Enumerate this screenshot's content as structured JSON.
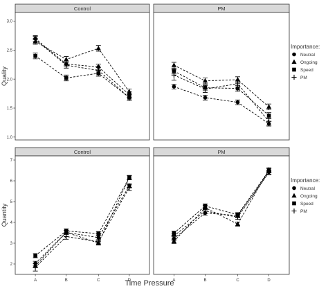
{
  "chart_data": {
    "type": "line",
    "x_title": "Time Pressure",
    "categories": [
      "A",
      "B",
      "C",
      "D"
    ],
    "legend": {
      "title": "Importance:",
      "entries": [
        {
          "name": "Neutral",
          "shape": "circle"
        },
        {
          "name": "Ongoing",
          "shape": "triangle"
        },
        {
          "name": "Speed",
          "shape": "square"
        },
        {
          "name": "PM",
          "shape": "plus"
        }
      ],
      "placement": "right"
    },
    "rows": [
      {
        "ylabel": "Quality",
        "ylim": [
          0.95,
          3.15
        ],
        "yticks": [
          "1.0",
          "1.5",
          "2.0",
          "2.5",
          "3.0"
        ],
        "panels": [
          {
            "title": "Control",
            "series": [
              {
                "name": "Neutral",
                "values": [
                  2.7,
                  2.26,
                  2.21,
                  1.73
                ],
                "errors": [
                  0.05,
                  0.05,
                  0.05,
                  0.05
                ]
              },
              {
                "name": "Ongoing",
                "values": [
                  2.65,
                  2.34,
                  2.53,
                  1.78
                ],
                "errors": [
                  0.05,
                  0.05,
                  0.05,
                  0.05
                ]
              },
              {
                "name": "Speed",
                "values": [
                  2.4,
                  2.02,
                  2.1,
                  1.68
                ],
                "errors": [
                  0.05,
                  0.05,
                  0.05,
                  0.05
                ]
              },
              {
                "name": "PM",
                "values": [
                  2.68,
                  2.24,
                  2.15,
                  1.68
                ],
                "errors": [
                  0.06,
                  0.05,
                  0.05,
                  0.05
                ]
              }
            ]
          },
          {
            "title": "PM",
            "series": [
              {
                "name": "Neutral",
                "values": [
                  1.87,
                  1.68,
                  1.6,
                  1.23
                ],
                "errors": [
                  0.04,
                  0.04,
                  0.04,
                  0.04
                ]
              },
              {
                "name": "Ongoing",
                "values": [
                  2.24,
                  1.97,
                  1.99,
                  1.52
                ],
                "errors": [
                  0.05,
                  0.05,
                  0.05,
                  0.05
                ]
              },
              {
                "name": "Speed",
                "values": [
                  2.14,
                  1.85,
                  1.84,
                  1.37
                ],
                "errors": [
                  0.05,
                  0.05,
                  0.05,
                  0.05
                ]
              },
              {
                "name": "PM",
                "values": [
                  2.07,
                  1.83,
                  1.92,
                  1.27
                ],
                "errors": [
                  0.09,
                  0.06,
                  0.06,
                  0.06
                ]
              }
            ]
          }
        ]
      },
      {
        "ylabel": "Quantity",
        "ylim": [
          1.5,
          7.2
        ],
        "yticks": [
          "2",
          "3",
          "4",
          "5",
          "6",
          "7"
        ],
        "panels": [
          {
            "title": "Control",
            "series": [
              {
                "name": "Neutral",
                "values": [
                  2.03,
                  3.52,
                  3.27,
                  5.76
                ],
                "errors": [
                  0.1,
                  0.1,
                  0.1,
                  0.1
                ]
              },
              {
                "name": "Ongoing",
                "values": [
                  1.92,
                  3.52,
                  3.01,
                  6.15
                ],
                "errors": [
                  0.1,
                  0.1,
                  0.1,
                  0.1
                ]
              },
              {
                "name": "Speed",
                "values": [
                  2.4,
                  3.59,
                  3.46,
                  6.16
                ],
                "errors": [
                  0.1,
                  0.1,
                  0.1,
                  0.1
                ]
              },
              {
                "name": "PM",
                "values": [
                  1.84,
                  3.32,
                  3.07,
                  5.68
                ],
                "errors": [
                  0.18,
                  0.13,
                  0.1,
                  0.14
                ]
              }
            ]
          },
          {
            "title": "PM",
            "series": [
              {
                "name": "Neutral",
                "values": [
                  3.22,
                  4.45,
                  4.33,
                  6.42
                ],
                "errors": [
                  0.1,
                  0.1,
                  0.1,
                  0.1
                ]
              },
              {
                "name": "Ongoing",
                "values": [
                  3.09,
                  4.71,
                  3.92,
                  6.53
                ],
                "errors": [
                  0.1,
                  0.1,
                  0.1,
                  0.1
                ]
              },
              {
                "name": "Speed",
                "values": [
                  3.48,
                  4.79,
                  4.37,
                  6.49
                ],
                "errors": [
                  0.1,
                  0.1,
                  0.1,
                  0.1
                ]
              },
              {
                "name": "PM",
                "values": [
                  3.35,
                  4.55,
                  4.25,
                  6.4
                ],
                "errors": [
                  0.1,
                  0.1,
                  0.1,
                  0.1
                ]
              }
            ]
          }
        ]
      }
    ]
  }
}
